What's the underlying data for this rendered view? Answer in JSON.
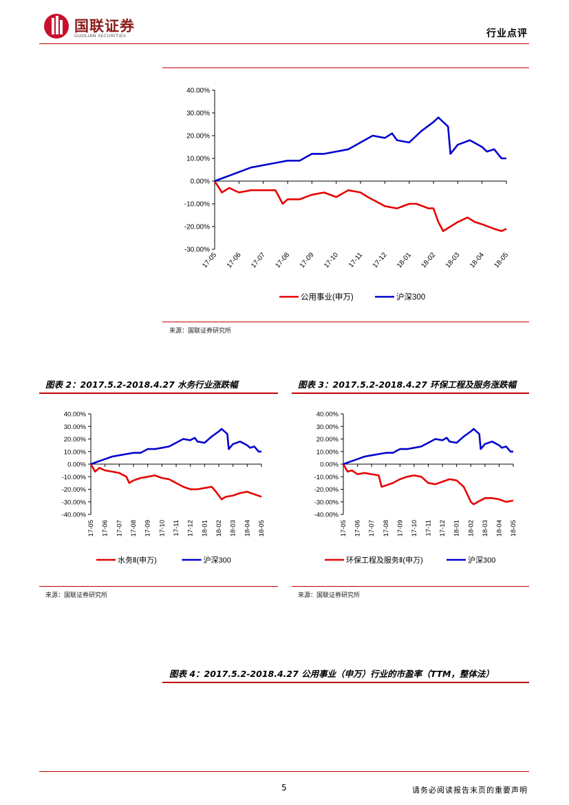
{
  "header": {
    "logo_text": "国联证券",
    "logo_sub": "GUOLIAN SECURITIES",
    "section": "行业点评"
  },
  "figure1": {
    "source": "来源：国联证券研究所"
  },
  "figure2": {
    "title": "图表 2：2017.5.2-2018.4.27 水务行业涨跌幅",
    "source": "来源：国联证券研究所"
  },
  "figure3": {
    "title": "图表 3：2017.5.2-2018.4.27 环保工程及服务涨跌幅",
    "source": "来源：国联证券研究所"
  },
  "figure4": {
    "title": "图表 4：2017.5.2-2018.4.27 公用事业（申万）行业的市盈率（TTM，整体法）"
  },
  "footer": {
    "page": "5",
    "disclaimer": "请务必阅读报告末页的重要声明"
  },
  "colors": {
    "red": "#e60000",
    "blue": "#0000cc",
    "rule": "#c00000"
  },
  "chart_data": [
    {
      "type": "line",
      "x": [
        "17-05",
        "17-06",
        "17-07",
        "17-08",
        "17-09",
        "17-10",
        "17-11",
        "17-12",
        "18-01",
        "18-02",
        "18-03",
        "18-04",
        "18-05"
      ],
      "ylim": [
        -0.3,
        0.4
      ],
      "yticks": [
        "40.00%",
        "30.00%",
        "20.00%",
        "10.00%",
        "0.00%",
        "-10.00%",
        "-20.00%",
        "-30.00%"
      ],
      "series": [
        {
          "name": "公用事业(申万)",
          "color": "#e60000",
          "points": [
            [
              0,
              0
            ],
            [
              0.3,
              -5
            ],
            [
              0.6,
              -3
            ],
            [
              1,
              -5
            ],
            [
              1.5,
              -4
            ],
            [
              2,
              -4
            ],
            [
              2.5,
              -4
            ],
            [
              2.8,
              -10
            ],
            [
              3,
              -8
            ],
            [
              3.5,
              -8
            ],
            [
              4,
              -6
            ],
            [
              4.5,
              -5
            ],
            [
              5,
              -7
            ],
            [
              5.5,
              -4
            ],
            [
              6,
              -5
            ],
            [
              6.3,
              -7
            ],
            [
              7,
              -11
            ],
            [
              7.5,
              -12
            ],
            [
              8,
              -10
            ],
            [
              8.3,
              -10
            ],
            [
              8.8,
              -12
            ],
            [
              9,
              -12
            ],
            [
              9.2,
              -18
            ],
            [
              9.4,
              -22
            ],
            [
              10,
              -18
            ],
            [
              10.4,
              -16
            ],
            [
              10.7,
              -18
            ],
            [
              11,
              -19
            ],
            [
              11.5,
              -21
            ],
            [
              11.8,
              -22
            ],
            [
              12,
              -21
            ]
          ]
        },
        {
          "name": "沪深300",
          "color": "#0000cc",
          "points": [
            [
              0,
              0
            ],
            [
              0.5,
              2
            ],
            [
              1,
              4
            ],
            [
              1.5,
              6
            ],
            [
              2,
              7
            ],
            [
              2.5,
              8
            ],
            [
              3,
              9
            ],
            [
              3.5,
              9
            ],
            [
              4,
              12
            ],
            [
              4.5,
              12
            ],
            [
              5,
              13
            ],
            [
              5.5,
              14
            ],
            [
              6,
              17
            ],
            [
              6.5,
              20
            ],
            [
              7,
              19
            ],
            [
              7.3,
              21
            ],
            [
              7.5,
              18
            ],
            [
              8,
              17
            ],
            [
              8.5,
              22
            ],
            [
              9,
              26
            ],
            [
              9.2,
              28
            ],
            [
              9.6,
              24
            ],
            [
              9.7,
              12
            ],
            [
              10,
              16
            ],
            [
              10.5,
              18
            ],
            [
              11,
              15
            ],
            [
              11.2,
              13
            ],
            [
              11.5,
              14
            ],
            [
              11.8,
              10
            ],
            [
              12,
              10
            ]
          ]
        }
      ]
    },
    {
      "type": "line",
      "x": [
        "17-05",
        "17-06",
        "17-07",
        "17-08",
        "17-09",
        "17-10",
        "17-11",
        "17-12",
        "18-01",
        "18-02",
        "18-03",
        "18-04",
        "18-05"
      ],
      "ylim": [
        -0.4,
        0.4
      ],
      "yticks": [
        "40.00%",
        "30.00%",
        "20.00%",
        "10.00%",
        "0.00%",
        "-10.00%",
        "-20.00%",
        "-30.00%",
        "-40.00%"
      ],
      "series": [
        {
          "name": "水务Ⅱ(申万)",
          "color": "#e60000",
          "points": [
            [
              0,
              0
            ],
            [
              0.3,
              -6
            ],
            [
              0.6,
              -3
            ],
            [
              1,
              -5
            ],
            [
              1.5,
              -6
            ],
            [
              2,
              -7
            ],
            [
              2.5,
              -10
            ],
            [
              2.7,
              -15
            ],
            [
              3,
              -13
            ],
            [
              3.5,
              -11
            ],
            [
              4,
              -10
            ],
            [
              4.5,
              -9
            ],
            [
              5,
              -11
            ],
            [
              5.5,
              -12
            ],
            [
              6,
              -15
            ],
            [
              6.5,
              -18
            ],
            [
              7,
              -20
            ],
            [
              7.5,
              -20
            ],
            [
              8,
              -19
            ],
            [
              8.5,
              -18
            ],
            [
              8.8,
              -22
            ],
            [
              9,
              -25
            ],
            [
              9.2,
              -28
            ],
            [
              9.5,
              -26
            ],
            [
              10,
              -25
            ],
            [
              10.5,
              -23
            ],
            [
              11,
              -22
            ],
            [
              11.5,
              -24
            ],
            [
              12,
              -26
            ]
          ]
        },
        {
          "name": "沪深300",
          "color": "#0000cc",
          "points": [
            [
              0,
              0
            ],
            [
              0.5,
              2
            ],
            [
              1,
              4
            ],
            [
              1.5,
              6
            ],
            [
              2,
              7
            ],
            [
              2.5,
              8
            ],
            [
              3,
              9
            ],
            [
              3.5,
              9
            ],
            [
              4,
              12
            ],
            [
              4.5,
              12
            ],
            [
              5,
              13
            ],
            [
              5.5,
              14
            ],
            [
              6,
              17
            ],
            [
              6.5,
              20
            ],
            [
              7,
              19
            ],
            [
              7.3,
              21
            ],
            [
              7.5,
              18
            ],
            [
              8,
              17
            ],
            [
              8.5,
              22
            ],
            [
              9,
              26
            ],
            [
              9.2,
              28
            ],
            [
              9.6,
              24
            ],
            [
              9.7,
              12
            ],
            [
              10,
              16
            ],
            [
              10.5,
              18
            ],
            [
              11,
              15
            ],
            [
              11.2,
              13
            ],
            [
              11.5,
              14
            ],
            [
              11.8,
              10
            ],
            [
              12,
              10
            ]
          ]
        }
      ]
    },
    {
      "type": "line",
      "x": [
        "17-05",
        "17-06",
        "17-07",
        "17-08",
        "17-09",
        "17-10",
        "17-11",
        "17-12",
        "18-01",
        "18-02",
        "18-03",
        "18-04",
        "18-05"
      ],
      "ylim": [
        -0.4,
        0.4
      ],
      "yticks": [
        "40.00%",
        "30.00%",
        "20.00%",
        "10.00%",
        "0.00%",
        "-10.00%",
        "-20.00%",
        "-30.00%",
        "-40.00%"
      ],
      "series": [
        {
          "name": "环保工程及服务Ⅱ(申万)",
          "color": "#e60000",
          "points": [
            [
              0,
              0
            ],
            [
              0.3,
              -6
            ],
            [
              0.6,
              -5
            ],
            [
              1,
              -8
            ],
            [
              1.5,
              -7
            ],
            [
              2,
              -8
            ],
            [
              2.5,
              -9
            ],
            [
              2.7,
              -18
            ],
            [
              3,
              -17
            ],
            [
              3.5,
              -15
            ],
            [
              4,
              -12
            ],
            [
              4.5,
              -10
            ],
            [
              5,
              -9
            ],
            [
              5.5,
              -10
            ],
            [
              6,
              -15
            ],
            [
              6.5,
              -16
            ],
            [
              7,
              -14
            ],
            [
              7.5,
              -12
            ],
            [
              8,
              -13
            ],
            [
              8.5,
              -18
            ],
            [
              8.8,
              -25
            ],
            [
              9,
              -30
            ],
            [
              9.2,
              -32
            ],
            [
              9.5,
              -30
            ],
            [
              10,
              -27
            ],
            [
              10.5,
              -27
            ],
            [
              11,
              -28
            ],
            [
              11.5,
              -30
            ],
            [
              12,
              -29
            ]
          ]
        },
        {
          "name": "沪深300",
          "color": "#0000cc",
          "points": [
            [
              0,
              0
            ],
            [
              0.5,
              2
            ],
            [
              1,
              4
            ],
            [
              1.5,
              6
            ],
            [
              2,
              7
            ],
            [
              2.5,
              8
            ],
            [
              3,
              9
            ],
            [
              3.5,
              9
            ],
            [
              4,
              12
            ],
            [
              4.5,
              12
            ],
            [
              5,
              13
            ],
            [
              5.5,
              14
            ],
            [
              6,
              17
            ],
            [
              6.5,
              20
            ],
            [
              7,
              19
            ],
            [
              7.3,
              21
            ],
            [
              7.5,
              18
            ],
            [
              8,
              17
            ],
            [
              8.5,
              22
            ],
            [
              9,
              26
            ],
            [
              9.2,
              28
            ],
            [
              9.6,
              24
            ],
            [
              9.7,
              12
            ],
            [
              10,
              16
            ],
            [
              10.5,
              18
            ],
            [
              11,
              15
            ],
            [
              11.2,
              13
            ],
            [
              11.5,
              14
            ],
            [
              11.8,
              10
            ],
            [
              12,
              10
            ]
          ]
        }
      ]
    }
  ]
}
